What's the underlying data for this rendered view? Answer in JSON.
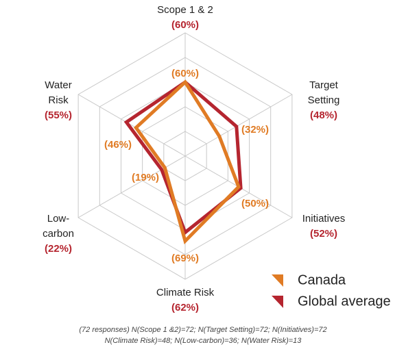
{
  "chart_data": {
    "type": "radar",
    "categories": [
      [
        "Scope 1 & 2"
      ],
      [
        "Target",
        "Setting"
      ],
      [
        "Initiatives"
      ],
      [
        "Climate Risk"
      ],
      [
        "Low-",
        "carbon"
      ],
      [
        "Water",
        "Risk"
      ]
    ],
    "series": [
      {
        "name": "Canada",
        "color": "#e07b24",
        "values": [
          60,
          32,
          50,
          69,
          19,
          46
        ],
        "value_labels": [
          "(60%)",
          "(32%)",
          "(50%)",
          "(69%)",
          "(19%)",
          "(46%)"
        ]
      },
      {
        "name": "Global average",
        "color": "#b5252f",
        "values": [
          60,
          48,
          52,
          62,
          22,
          55
        ],
        "value_labels": [
          "(60%)",
          "(48%)",
          "(52%)",
          "(62%)",
          "(22%)",
          "(55%)"
        ]
      }
    ],
    "rlim": [
      0,
      100
    ],
    "rticks": [
      20,
      40,
      60,
      80,
      100
    ],
    "grid": true,
    "legend": "lower right",
    "footnote": [
      "(72 responses) N(Scope 1 &2)=72; N(Target Setting)=72; N(Initiatives)=72",
      "N(Climate Risk)=48; N(Low-carbon)=36; N(Water Risk)=13"
    ]
  }
}
